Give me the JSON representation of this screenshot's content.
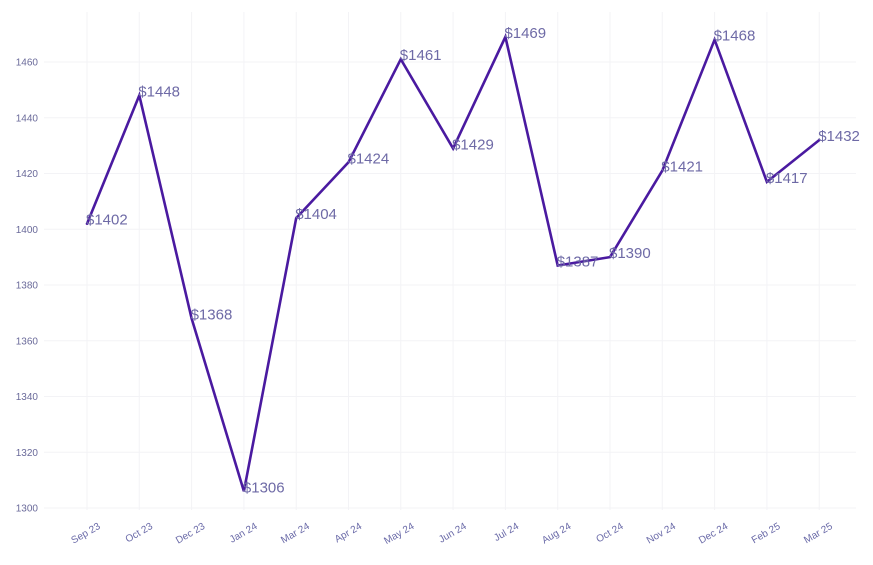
{
  "chart_data": {
    "type": "line",
    "title": "",
    "xlabel": "",
    "ylabel": "",
    "categories": [
      "Sep 23",
      "Oct 23",
      "Dec 23",
      "Jan 24",
      "Mar 24",
      "Apr 24",
      "May 24",
      "Jun 24",
      "Jul 24",
      "Aug 24",
      "Oct 24",
      "Nov 24",
      "Dec 24",
      "Feb 25",
      "Mar 25"
    ],
    "series": [
      {
        "values": [
          1402,
          1448,
          1368,
          1306,
          1404,
          1424,
          1461,
          1429,
          1469,
          1387,
          1390,
          1421,
          1468,
          1417,
          1432
        ]
      }
    ],
    "data_labels": [
      "$1402",
      "$1448",
      "$1368",
      "$1306",
      "$1404",
      "$1424",
      "$1461",
      "$1429",
      "$1469",
      "$1387",
      "$1390",
      "$1421",
      "$1468",
      "$1417",
      "$1432"
    ],
    "y_ticks": [
      1300,
      1320,
      1340,
      1360,
      1380,
      1400,
      1420,
      1440,
      1460
    ],
    "ylim": [
      1300,
      1460
    ],
    "grid": true,
    "legend": "none",
    "colors": {
      "line": "#4a1aa0",
      "label": "#6e6aa6",
      "tick": "#6a6aa8",
      "grid": "#f3f3f6"
    }
  }
}
